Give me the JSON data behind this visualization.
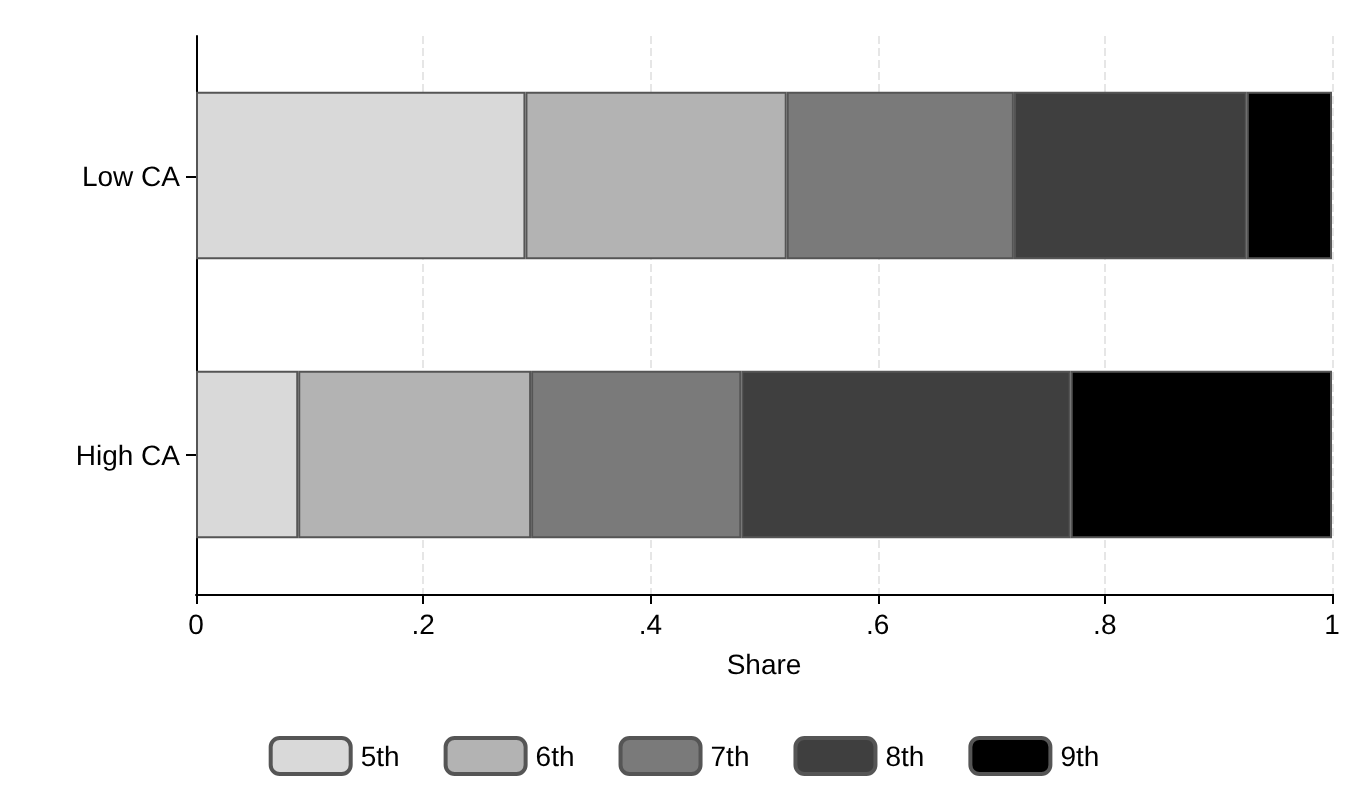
{
  "chart_data": {
    "type": "bar",
    "orientation": "horizontal",
    "stacked": true,
    "xlabel": "Share",
    "categories": [
      "Low CA",
      "High CA"
    ],
    "series": [
      {
        "name": "5th",
        "color": "#d9d9d9",
        "values": [
          0.29,
          0.09
        ]
      },
      {
        "name": "6th",
        "color": "#b3b3b3",
        "values": [
          0.23,
          0.205
        ]
      },
      {
        "name": "7th",
        "color": "#7a7a7a",
        "values": [
          0.2,
          0.185
        ]
      },
      {
        "name": "8th",
        "color": "#3f3f3f",
        "values": [
          0.205,
          0.29
        ]
      },
      {
        "name": "9th",
        "color": "#000000",
        "values": [
          0.075,
          0.23
        ]
      }
    ],
    "xlim": [
      0,
      1
    ],
    "xticks": [
      0,
      {
        "value": 0.2,
        "label": ".2"
      },
      {
        "value": 0.4,
        "label": ".4"
      },
      {
        "value": 0.6,
        "label": ".6"
      },
      {
        "value": 0.8,
        "label": ".8"
      },
      1
    ],
    "grid": "x",
    "legend": "bottom"
  }
}
